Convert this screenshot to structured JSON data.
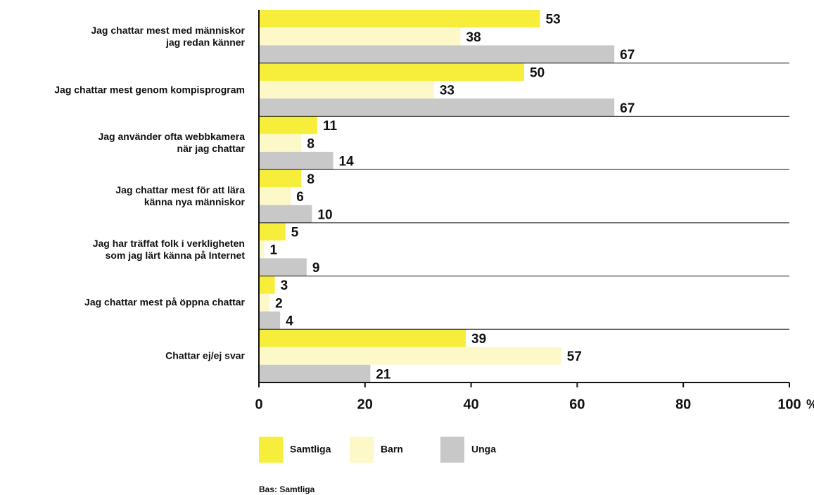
{
  "chart_data": {
    "type": "bar",
    "orientation": "horizontal",
    "categories": [
      "Jag chattar mest med människor\njag redan känner",
      "Jag chattar mest genom kompisprogram",
      "Jag använder ofta webbkamera\nnär jag chattar",
      "Jag chattar mest för att lära\nkänna nya människor",
      "Jag har träffat folk i verkligheten\nsom jag lärt känna på Internet",
      "Jag chattar mest på öppna chattar",
      "Chattar ej/ej svar"
    ],
    "series": [
      {
        "name": "Samtliga",
        "color": "#f7ee3b",
        "values": [
          53,
          50,
          11,
          8,
          5,
          3,
          39
        ]
      },
      {
        "name": "Barn",
        "color": "#fdf8c8",
        "values": [
          38,
          33,
          8,
          6,
          1,
          2,
          57
        ]
      },
      {
        "name": "Unga",
        "color": "#c8c8c8",
        "values": [
          67,
          67,
          14,
          10,
          9,
          4,
          21
        ]
      }
    ],
    "xlim": [
      0,
      100
    ],
    "xticks": [
      0,
      20,
      40,
      60,
      80,
      100
    ],
    "x_unit": "%",
    "legend": "bottom-left",
    "footnote": "Bas: Samtliga"
  }
}
